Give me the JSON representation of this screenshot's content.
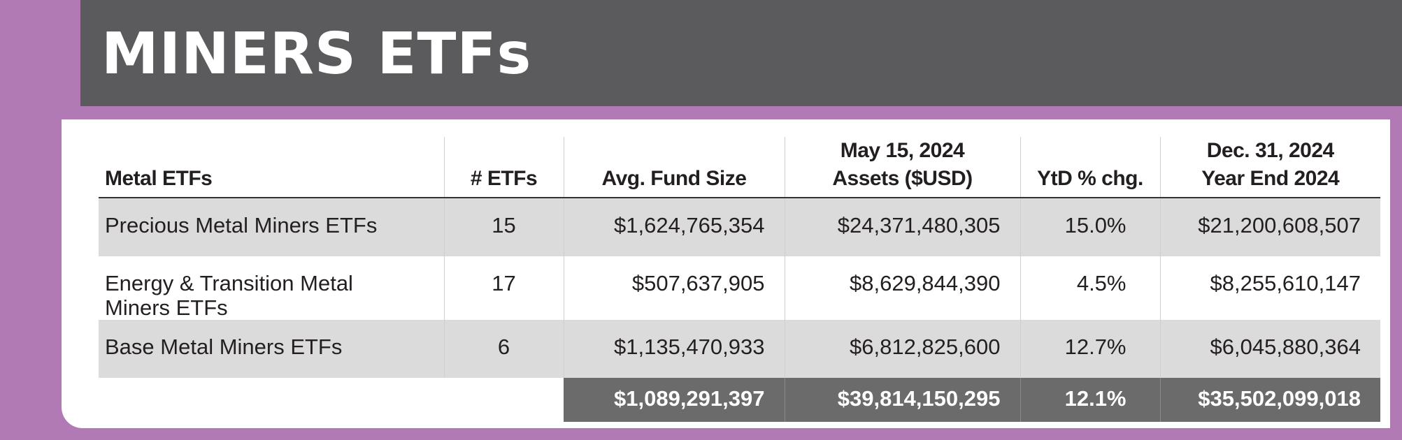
{
  "title": "MINERS ETFs",
  "table": {
    "headers": {
      "metal": "Metal ETFs",
      "count": "# ETFs",
      "avg_fund_size": "Avg. Fund Size",
      "assets_line1": "May 15, 2024",
      "assets_line2": "Assets ($USD)",
      "ytd": "YtD % chg.",
      "year_end_line1": "Dec. 31, 2024",
      "year_end_line2": "Year End 2024"
    },
    "rows": [
      {
        "name": "Precious Metal Miners ETFs",
        "count": "15",
        "avg_fund_size": "$1,624,765,354",
        "assets": "$24,371,480,305",
        "ytd": "15.0%",
        "year_end": "$21,200,608,507"
      },
      {
        "name_line1": "Energy & Transition Metal",
        "name_line2": "Miners ETFs",
        "count": "17",
        "avg_fund_size": "$507,637,905",
        "assets": "$8,629,844,390",
        "ytd": "4.5%",
        "year_end": "$8,255,610,147"
      },
      {
        "name": "Base Metal Miners ETFs",
        "count": "6",
        "avg_fund_size": "$1,135,470,933",
        "assets": "$6,812,825,600",
        "ytd": "12.7%",
        "year_end": "$6,045,880,364"
      }
    ],
    "totals": {
      "avg_fund_size": "$1,089,291,397",
      "assets": "$39,814,150,295",
      "ytd": "12.1%",
      "year_end": "$35,502,099,018"
    }
  },
  "colors": {
    "background": "#b27ab5",
    "header_bar": "#5b5a5c",
    "row_shade": "#dcdbdc",
    "totals_fill": "#6b6b6b"
  }
}
